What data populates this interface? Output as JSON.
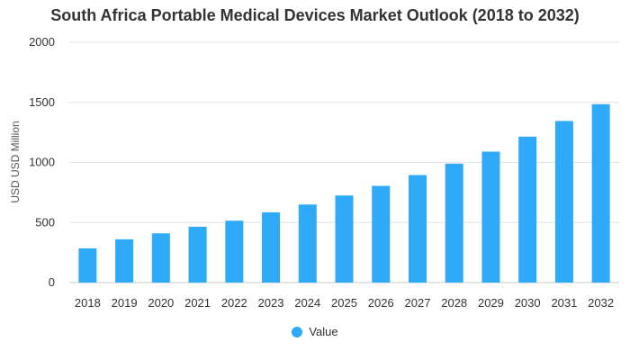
{
  "chart_data": {
    "type": "bar",
    "title": "South Africa Portable Medical Devices Market Outlook (2018 to 2032)",
    "xlabel": "",
    "ylabel": "USD USD Million",
    "categories": [
      "2018",
      "2019",
      "2020",
      "2021",
      "2022",
      "2023",
      "2024",
      "2025",
      "2026",
      "2027",
      "2028",
      "2029",
      "2030",
      "2031",
      "2032"
    ],
    "series": [
      {
        "name": "Value",
        "values": [
          285,
          360,
          410,
          465,
          515,
          585,
          650,
          725,
          805,
          895,
          990,
          1090,
          1215,
          1345,
          1485
        ],
        "color": "#2eaaf8"
      }
    ],
    "ylim": [
      0,
      2000
    ],
    "yticks": [
      0,
      500,
      1000,
      1500,
      2000
    ],
    "grid": true,
    "legend_position": "bottom"
  }
}
